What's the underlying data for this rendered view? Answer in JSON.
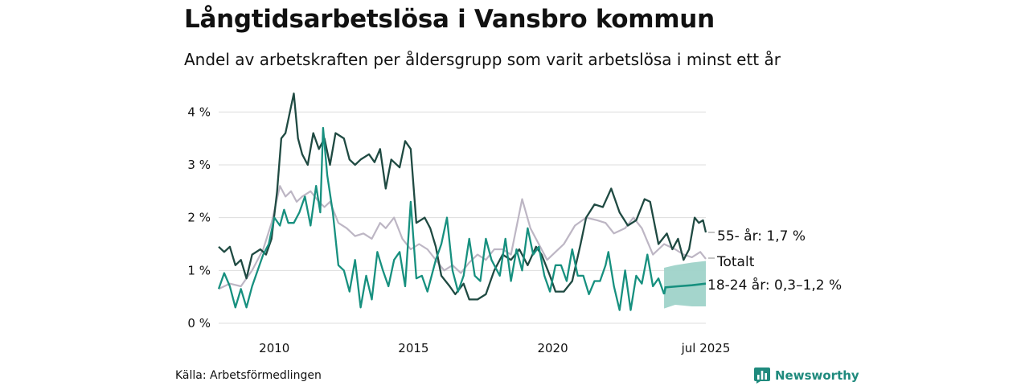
{
  "title": "Långtidsarbetslösa i Vansbro kommun",
  "subtitle": "Andel av arbetskraften per åldersgrupp som varit arbetslösa i minst ett år",
  "source": "Källa: Arbetsförmedlingen",
  "brand": "Newsworthy",
  "colors": {
    "dark": "#1f4a42",
    "teal": "#17907f",
    "grey": "#bdb6c4",
    "band": "#9fd3c9",
    "grid": "#dddddd"
  },
  "chart_data": {
    "type": "line",
    "x_ticks": [
      {
        "label": "2010",
        "x": 2010.0
      },
      {
        "label": "2015",
        "x": 2015.0
      },
      {
        "label": "2020",
        "x": 2020.0
      },
      {
        "label": "jul 2025",
        "x": 2025.5
      }
    ],
    "y_ticks": [
      {
        "label": "0 %",
        "value": 0
      },
      {
        "label": "1 %",
        "value": 1
      },
      {
        "label": "2 %",
        "value": 2
      },
      {
        "label": "3 %",
        "value": 3
      },
      {
        "label": "4 %",
        "value": 4
      }
    ],
    "xlim": [
      2008.0,
      2025.5
    ],
    "ylim": [
      0,
      4.4
    ],
    "grid": true,
    "series": [
      {
        "name": "Totalt",
        "color": "grey",
        "label": "Totalt",
        "points": [
          [
            2008.0,
            0.65
          ],
          [
            2008.4,
            0.75
          ],
          [
            2008.8,
            0.7
          ],
          [
            2009.2,
            1.0
          ],
          [
            2009.6,
            1.4
          ],
          [
            2009.9,
            1.9
          ],
          [
            2010.2,
            2.6
          ],
          [
            2010.4,
            2.4
          ],
          [
            2010.6,
            2.5
          ],
          [
            2010.8,
            2.3
          ],
          [
            2011.0,
            2.4
          ],
          [
            2011.3,
            2.5
          ],
          [
            2011.6,
            2.3
          ],
          [
            2011.8,
            2.2
          ],
          [
            2012.0,
            2.3
          ],
          [
            2012.3,
            1.9
          ],
          [
            2012.6,
            1.8
          ],
          [
            2012.9,
            1.65
          ],
          [
            2013.2,
            1.7
          ],
          [
            2013.5,
            1.6
          ],
          [
            2013.8,
            1.9
          ],
          [
            2014.0,
            1.8
          ],
          [
            2014.3,
            2.0
          ],
          [
            2014.6,
            1.6
          ],
          [
            2014.9,
            1.4
          ],
          [
            2015.2,
            1.5
          ],
          [
            2015.5,
            1.4
          ],
          [
            2015.8,
            1.2
          ],
          [
            2016.1,
            1.0
          ],
          [
            2016.4,
            1.1
          ],
          [
            2016.7,
            0.95
          ],
          [
            2017.0,
            1.15
          ],
          [
            2017.3,
            1.3
          ],
          [
            2017.6,
            1.2
          ],
          [
            2017.9,
            1.4
          ],
          [
            2018.2,
            1.4
          ],
          [
            2018.5,
            1.3
          ],
          [
            2018.9,
            2.35
          ],
          [
            2019.2,
            1.8
          ],
          [
            2019.5,
            1.5
          ],
          [
            2019.8,
            1.2
          ],
          [
            2020.1,
            1.35
          ],
          [
            2020.4,
            1.5
          ],
          [
            2020.8,
            1.85
          ],
          [
            2021.2,
            2.0
          ],
          [
            2021.6,
            1.95
          ],
          [
            2021.9,
            1.9
          ],
          [
            2022.2,
            1.7
          ],
          [
            2022.6,
            1.8
          ],
          [
            2022.9,
            2.0
          ],
          [
            2023.2,
            1.8
          ],
          [
            2023.6,
            1.3
          ],
          [
            2024.0,
            1.5
          ],
          [
            2024.4,
            1.4
          ],
          [
            2024.7,
            1.3
          ],
          [
            2025.0,
            1.25
          ],
          [
            2025.3,
            1.35
          ],
          [
            2025.5,
            1.22
          ]
        ]
      },
      {
        "name": "55- år",
        "color": "dark",
        "label": "55- år: 1,7 %",
        "points": [
          [
            2008.0,
            1.45
          ],
          [
            2008.2,
            1.35
          ],
          [
            2008.4,
            1.45
          ],
          [
            2008.6,
            1.1
          ],
          [
            2008.8,
            1.2
          ],
          [
            2009.0,
            0.85
          ],
          [
            2009.2,
            1.3
          ],
          [
            2009.5,
            1.4
          ],
          [
            2009.7,
            1.3
          ],
          [
            2009.9,
            1.6
          ],
          [
            2010.1,
            2.5
          ],
          [
            2010.25,
            3.5
          ],
          [
            2010.4,
            3.6
          ],
          [
            2010.6,
            4.1
          ],
          [
            2010.7,
            4.35
          ],
          [
            2010.85,
            3.5
          ],
          [
            2011.0,
            3.2
          ],
          [
            2011.2,
            3.0
          ],
          [
            2011.4,
            3.6
          ],
          [
            2011.6,
            3.3
          ],
          [
            2011.8,
            3.5
          ],
          [
            2012.0,
            3.0
          ],
          [
            2012.2,
            3.6
          ],
          [
            2012.5,
            3.5
          ],
          [
            2012.7,
            3.1
          ],
          [
            2012.9,
            3.0
          ],
          [
            2013.1,
            3.1
          ],
          [
            2013.4,
            3.2
          ],
          [
            2013.6,
            3.05
          ],
          [
            2013.8,
            3.3
          ],
          [
            2014.0,
            2.55
          ],
          [
            2014.2,
            3.1
          ],
          [
            2014.5,
            2.95
          ],
          [
            2014.7,
            3.45
          ],
          [
            2014.9,
            3.3
          ],
          [
            2015.1,
            1.9
          ],
          [
            2015.4,
            2.0
          ],
          [
            2015.6,
            1.8
          ],
          [
            2015.8,
            1.45
          ],
          [
            2016.0,
            0.9
          ],
          [
            2016.3,
            0.7
          ],
          [
            2016.5,
            0.55
          ],
          [
            2016.8,
            0.75
          ],
          [
            2017.0,
            0.45
          ],
          [
            2017.3,
            0.45
          ],
          [
            2017.6,
            0.55
          ],
          [
            2017.9,
            1.0
          ],
          [
            2018.2,
            1.3
          ],
          [
            2018.5,
            1.2
          ],
          [
            2018.8,
            1.4
          ],
          [
            2019.1,
            1.1
          ],
          [
            2019.4,
            1.45
          ],
          [
            2019.6,
            1.3
          ],
          [
            2019.9,
            0.9
          ],
          [
            2020.1,
            0.6
          ],
          [
            2020.4,
            0.6
          ],
          [
            2020.7,
            0.8
          ],
          [
            2021.0,
            1.5
          ],
          [
            2021.2,
            2.0
          ],
          [
            2021.5,
            2.25
          ],
          [
            2021.8,
            2.2
          ],
          [
            2022.1,
            2.55
          ],
          [
            2022.4,
            2.1
          ],
          [
            2022.7,
            1.85
          ],
          [
            2023.0,
            1.95
          ],
          [
            2023.3,
            2.35
          ],
          [
            2023.5,
            2.3
          ],
          [
            2023.8,
            1.5
          ],
          [
            2024.1,
            1.7
          ],
          [
            2024.3,
            1.4
          ],
          [
            2024.5,
            1.6
          ],
          [
            2024.7,
            1.2
          ],
          [
            2024.9,
            1.4
          ],
          [
            2025.1,
            2.0
          ],
          [
            2025.25,
            1.9
          ],
          [
            2025.4,
            1.95
          ],
          [
            2025.5,
            1.72
          ]
        ]
      },
      {
        "name": "18-24 år",
        "color": "teal",
        "label": "18-24 år: 0,3–1,2 %",
        "points": [
          [
            2008.0,
            0.65
          ],
          [
            2008.2,
            0.95
          ],
          [
            2008.4,
            0.7
          ],
          [
            2008.6,
            0.3
          ],
          [
            2008.8,
            0.65
          ],
          [
            2009.0,
            0.3
          ],
          [
            2009.2,
            0.7
          ],
          [
            2009.4,
            1.0
          ],
          [
            2009.6,
            1.3
          ],
          [
            2009.8,
            1.5
          ],
          [
            2010.0,
            2.0
          ],
          [
            2010.2,
            1.85
          ],
          [
            2010.35,
            2.15
          ],
          [
            2010.5,
            1.9
          ],
          [
            2010.7,
            1.9
          ],
          [
            2010.9,
            2.1
          ],
          [
            2011.1,
            2.4
          ],
          [
            2011.3,
            1.85
          ],
          [
            2011.5,
            2.6
          ],
          [
            2011.65,
            2.1
          ],
          [
            2011.75,
            3.7
          ],
          [
            2011.9,
            2.8
          ],
          [
            2012.1,
            2.1
          ],
          [
            2012.3,
            1.1
          ],
          [
            2012.5,
            1.0
          ],
          [
            2012.7,
            0.6
          ],
          [
            2012.9,
            1.2
          ],
          [
            2013.1,
            0.3
          ],
          [
            2013.3,
            0.9
          ],
          [
            2013.5,
            0.45
          ],
          [
            2013.7,
            1.35
          ],
          [
            2013.9,
            1.0
          ],
          [
            2014.1,
            0.7
          ],
          [
            2014.3,
            1.2
          ],
          [
            2014.5,
            1.35
          ],
          [
            2014.7,
            0.7
          ],
          [
            2014.9,
            2.3
          ],
          [
            2015.1,
            0.85
          ],
          [
            2015.3,
            0.9
          ],
          [
            2015.5,
            0.6
          ],
          [
            2015.8,
            1.2
          ],
          [
            2016.0,
            1.5
          ],
          [
            2016.2,
            2.0
          ],
          [
            2016.4,
            1.0
          ],
          [
            2016.6,
            0.6
          ],
          [
            2016.8,
            0.9
          ],
          [
            2017.0,
            1.6
          ],
          [
            2017.2,
            0.9
          ],
          [
            2017.4,
            0.8
          ],
          [
            2017.6,
            1.6
          ],
          [
            2017.8,
            1.2
          ],
          [
            2018.1,
            0.9
          ],
          [
            2018.3,
            1.6
          ],
          [
            2018.5,
            0.8
          ],
          [
            2018.7,
            1.4
          ],
          [
            2018.9,
            1.0
          ],
          [
            2019.1,
            1.8
          ],
          [
            2019.3,
            1.3
          ],
          [
            2019.5,
            1.45
          ],
          [
            2019.7,
            0.9
          ],
          [
            2019.9,
            0.6
          ],
          [
            2020.1,
            1.1
          ],
          [
            2020.3,
            1.1
          ],
          [
            2020.5,
            0.8
          ],
          [
            2020.7,
            1.4
          ],
          [
            2020.9,
            0.9
          ],
          [
            2021.1,
            0.9
          ],
          [
            2021.3,
            0.55
          ],
          [
            2021.5,
            0.8
          ],
          [
            2021.7,
            0.8
          ],
          [
            2021.9,
            1.1
          ],
          [
            2022.0,
            1.35
          ],
          [
            2022.2,
            0.7
          ],
          [
            2022.4,
            0.25
          ],
          [
            2022.6,
            1.0
          ],
          [
            2022.8,
            0.25
          ],
          [
            2023.0,
            0.9
          ],
          [
            2023.2,
            0.75
          ],
          [
            2023.4,
            1.3
          ],
          [
            2023.6,
            0.7
          ],
          [
            2023.8,
            0.85
          ],
          [
            2024.0,
            0.55
          ]
        ]
      }
    ],
    "estimate": {
      "series": "18-24 år",
      "mid": [
        [
          2024.0,
          0.55
        ],
        [
          2024.05,
          0.68
        ],
        [
          2024.5,
          0.7
        ],
        [
          2025.0,
          0.72
        ],
        [
          2025.5,
          0.75
        ]
      ],
      "lower": [
        [
          2024.0,
          0.28
        ],
        [
          2024.4,
          0.35
        ],
        [
          2025.0,
          0.32
        ],
        [
          2025.5,
          0.32
        ]
      ],
      "upper": [
        [
          2024.0,
          1.05
        ],
        [
          2024.4,
          1.1
        ],
        [
          2025.0,
          1.15
        ],
        [
          2025.5,
          1.18
        ]
      ]
    }
  }
}
